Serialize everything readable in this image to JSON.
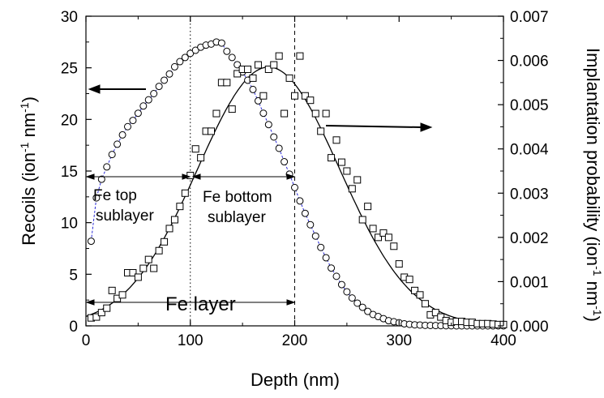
{
  "chart_data": {
    "type": "scatter",
    "xlabel": "Depth (nm)",
    "xlim": [
      0,
      400
    ],
    "x_ticks": [
      "0",
      "100",
      "200",
      "300",
      "400"
    ],
    "ylabel_left": {
      "main": "Recoils (ion",
      "sup1": "-1",
      "mid": " nm",
      "sup2": "-1",
      "end": ")"
    },
    "ylim_left": [
      0,
      30
    ],
    "y_ticks_left": [
      "0",
      "5",
      "10",
      "15",
      "20",
      "25",
      "30"
    ],
    "ylabel_right": {
      "main": "Implantation probability (ion",
      "sup1": "-1",
      "mid": " nm",
      "sup2": "-1",
      "end": ")"
    },
    "ylim_right": [
      0,
      0.007
    ],
    "y_ticks_right": [
      "0.000",
      "0.001",
      "0.002",
      "0.003",
      "0.004",
      "0.005",
      "0.006",
      "0.007"
    ],
    "vertical_markers": [
      {
        "x": 100,
        "style": "dotted"
      },
      {
        "x": 200,
        "style": "dashed"
      }
    ],
    "annotations": {
      "fe_top_line1": "Fe top",
      "fe_top_line2": "sublayer",
      "fe_bottom_line1": "Fe bottom",
      "fe_bottom_line2": "sublayer",
      "fe_layer": "Fe layer"
    },
    "series": [
      {
        "marker": "circle",
        "axis": "left",
        "x": [
          5,
          10,
          15,
          20,
          25,
          30,
          35,
          40,
          45,
          50,
          55,
          60,
          65,
          70,
          75,
          80,
          85,
          90,
          95,
          100,
          105,
          110,
          115,
          120,
          125,
          130,
          135,
          140,
          145,
          150,
          155,
          160,
          165,
          170,
          175,
          180,
          185,
          190,
          195,
          200,
          205,
          210,
          215,
          220,
          225,
          230,
          235,
          240,
          245,
          250,
          255,
          260,
          265,
          270,
          275,
          280,
          285,
          290,
          295,
          300,
          305,
          310,
          315,
          320,
          325,
          330,
          335,
          340,
          345,
          350,
          355,
          360,
          365,
          370,
          375,
          380,
          385,
          390,
          395,
          400
        ],
        "y": [
          8.2,
          12.4,
          14.2,
          15.4,
          16.6,
          17.6,
          18.5,
          19.3,
          19.9,
          20.6,
          21.3,
          21.9,
          22.5,
          23.2,
          23.8,
          24.4,
          25.1,
          25.6,
          26.0,
          26.4,
          26.7,
          27.0,
          27.2,
          27.3,
          27.5,
          27.4,
          26.6,
          26.0,
          25.3,
          24.6,
          23.8,
          22.9,
          21.8,
          20.6,
          19.5,
          18.3,
          17.2,
          15.9,
          14.7,
          13.4,
          12.1,
          10.9,
          9.8,
          8.7,
          7.6,
          6.6,
          5.6,
          4.8,
          4.0,
          3.3,
          2.7,
          2.2,
          1.8,
          1.4,
          1.1,
          0.9,
          0.7,
          0.5,
          0.4,
          0.3,
          0.2,
          0.15,
          0.1,
          0.08,
          0.05,
          0.04,
          0.03,
          0.02,
          0.01,
          0.01,
          0,
          0,
          0,
          0,
          0,
          0,
          0,
          0,
          0,
          0
        ]
      },
      {
        "marker": "square",
        "axis": "right",
        "x": [
          5,
          10,
          15,
          20,
          25,
          30,
          35,
          40,
          45,
          50,
          55,
          60,
          65,
          70,
          75,
          80,
          85,
          90,
          95,
          100,
          105,
          110,
          115,
          120,
          125,
          130,
          135,
          140,
          145,
          150,
          155,
          160,
          165,
          170,
          175,
          180,
          185,
          190,
          195,
          200,
          205,
          210,
          215,
          220,
          225,
          230,
          235,
          240,
          245,
          250,
          255,
          260,
          265,
          270,
          275,
          280,
          285,
          290,
          295,
          300,
          305,
          310,
          315,
          320,
          325,
          330,
          335,
          340,
          345,
          350,
          355,
          360,
          365,
          370,
          375,
          380,
          385,
          390,
          395,
          400
        ],
        "y": [
          0.00018,
          0.0002,
          0.0003,
          0.0004,
          0.0008,
          0.00062,
          0.0007,
          0.0012,
          0.0012,
          0.0011,
          0.0013,
          0.0015,
          0.0013,
          0.0017,
          0.0019,
          0.0022,
          0.0024,
          0.0027,
          0.003,
          0.0034,
          0.004,
          0.0038,
          0.0044,
          0.0044,
          0.0048,
          0.0055,
          0.0055,
          0.0049,
          0.0057,
          0.0058,
          0.0058,
          0.0056,
          0.0059,
          0.0052,
          0.0058,
          0.0059,
          0.0061,
          0.0048,
          0.0056,
          0.0052,
          0.0061,
          0.0052,
          0.0051,
          0.0048,
          0.0044,
          0.0048,
          0.0038,
          0.0042,
          0.0037,
          0.0035,
          0.0031,
          0.0033,
          0.0024,
          0.0027,
          0.0022,
          0.002,
          0.0021,
          0.002,
          0.0018,
          0.0014,
          0.0011,
          0.00105,
          0.0008,
          0.0007,
          0.0005,
          0.00025,
          0.0003,
          0.0002,
          0.00012,
          8e-05,
          0.0001,
          0.0001,
          8e-05,
          8e-05,
          5e-05,
          5e-05,
          5e-05,
          4e-05,
          3e-05,
          3e-05
        ]
      }
    ],
    "fit_curve": {
      "axis": "right",
      "type": "gaussian",
      "amplitude": 0.00585,
      "center": 175,
      "sigma": 68
    }
  }
}
